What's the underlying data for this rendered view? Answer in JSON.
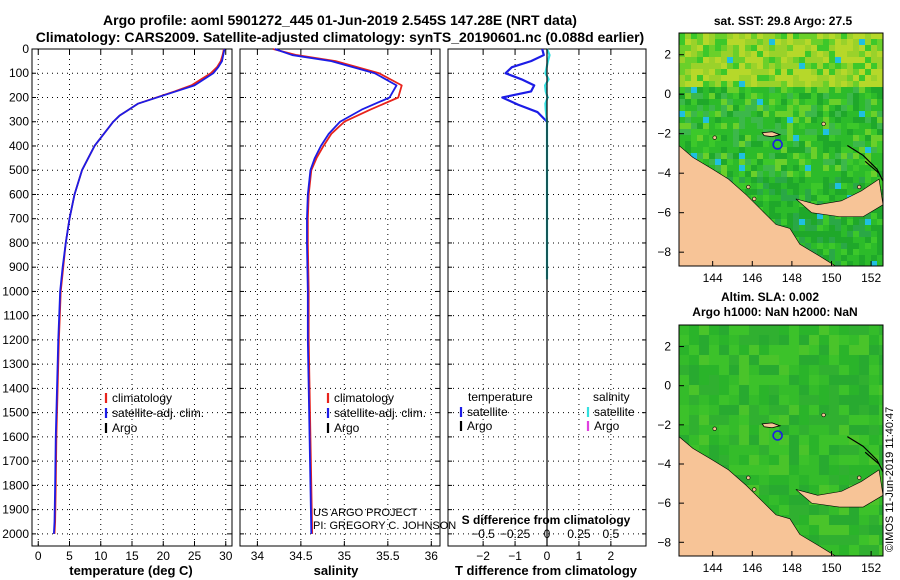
{
  "header": {
    "line1": "Argo profile: aoml 5901272_445 01-Jun-2019 2.545S 147.28E (NRT data)",
    "line2": "Climatology: CARS2009. Satellite-adjusted climatology: synTS_20190601.nc (0.088d earlier)"
  },
  "credit": {
    "project": "US ARGO PROJECT",
    "pi": "PI: GREGORY C. JOHNSON",
    "stamp": "©IMOS 11-Jun-2019 11:40:47"
  },
  "colors": {
    "climatology": "#e8231c",
    "satellite": "#1c1ce6",
    "argo": "#000000",
    "salinity_sat": "#33e0e0",
    "salinity_argo": "#e040e0",
    "land": "#f7c497",
    "ocean": "#28b828"
  },
  "chart_data": [
    {
      "id": "temperature",
      "type": "line",
      "xlabel": "temperature (deg C)",
      "ylabel": "pressure (dbar)",
      "xlim": [
        -1,
        31
      ],
      "ylim": [
        2050,
        0
      ],
      "xticks": [
        0,
        5,
        10,
        15,
        20,
        25,
        30
      ],
      "yticks": [
        0,
        100,
        200,
        300,
        400,
        500,
        600,
        700,
        800,
        900,
        1000,
        1100,
        1200,
        1300,
        1400,
        1500,
        1600,
        1700,
        1800,
        1900,
        2000
      ],
      "legend": [
        "climatology",
        "satellite-adj. clim.",
        "Argo"
      ],
      "series": [
        {
          "name": "climatology",
          "color": "#e8231c",
          "x": [
            29.7,
            29.5,
            29.2,
            28.6,
            27.6,
            24.5,
            21.8,
            16.0,
            13.0,
            12.0,
            10.5,
            9.0,
            8.0,
            7.0,
            5.8,
            5.0,
            4.4,
            4.0,
            3.6,
            3.3,
            3.1,
            2.9,
            2.8,
            2.7,
            2.6
          ],
          "y": [
            0,
            25,
            50,
            75,
            100,
            150,
            175,
            225,
            275,
            300,
            350,
            400,
            450,
            500,
            600,
            700,
            800,
            900,
            1000,
            1200,
            1400,
            1600,
            1800,
            1950,
            2000
          ]
        },
        {
          "name": "satellite-adj. clim.",
          "color": "#1c1ce6",
          "x": [
            29.8,
            29.6,
            29.4,
            28.8,
            28.0,
            25.0,
            22.0,
            16.0,
            13.0,
            12.0,
            10.5,
            9.0,
            8.0,
            7.0,
            5.8,
            5.0,
            4.4,
            3.9,
            3.5,
            3.2,
            3.0,
            2.8,
            2.7,
            2.6,
            2.5
          ],
          "y": [
            0,
            25,
            50,
            75,
            100,
            150,
            175,
            225,
            275,
            300,
            350,
            400,
            450,
            500,
            600,
            700,
            800,
            900,
            1000,
            1200,
            1400,
            1600,
            1800,
            1950,
            2000
          ]
        }
      ]
    },
    {
      "id": "salinity",
      "type": "line",
      "xlabel": "salinity",
      "xlim": [
        33.8,
        36.1
      ],
      "ylim": [
        2050,
        0
      ],
      "xticks": [
        34,
        34.5,
        35,
        35.5,
        36
      ],
      "legend": [
        "climatology",
        "satellite-adj. clim.",
        "Argo"
      ],
      "series": [
        {
          "name": "climatology",
          "color": "#e8231c",
          "x": [
            34.18,
            34.45,
            34.9,
            35.4,
            35.66,
            35.62,
            35.3,
            35.0,
            34.85,
            34.76,
            34.68,
            34.62,
            34.59,
            34.58,
            34.58,
            34.59,
            34.59,
            34.6,
            34.61,
            34.62,
            34.63
          ],
          "y": [
            0,
            25,
            50,
            100,
            150,
            200,
            250,
            300,
            350,
            400,
            450,
            500,
            600,
            700,
            800,
            1000,
            1200,
            1400,
            1600,
            1800,
            2000
          ]
        },
        {
          "name": "satellite-adj. clim.",
          "color": "#1c1ce6",
          "x": [
            34.2,
            34.4,
            34.85,
            35.35,
            35.6,
            35.52,
            35.2,
            34.95,
            34.82,
            34.73,
            34.66,
            34.61,
            34.58,
            34.57,
            34.57,
            34.58,
            34.58,
            34.59,
            34.6,
            34.61,
            34.62
          ],
          "y": [
            0,
            25,
            50,
            100,
            150,
            200,
            250,
            300,
            350,
            400,
            450,
            500,
            600,
            700,
            800,
            1000,
            1200,
            1400,
            1600,
            1800,
            2000
          ]
        }
      ]
    },
    {
      "id": "difference",
      "type": "line",
      "xlabel": "T difference from climatology",
      "xlabel_top": "S difference from climatology",
      "xlim": [
        -3.1,
        3.1
      ],
      "ylim": [
        2050,
        0
      ],
      "xticks": [
        -2,
        -1,
        0,
        1,
        2
      ],
      "xticks_top": [
        -0.5,
        -0.25,
        0,
        0.25,
        0.5
      ],
      "legend_left_title": "temperature",
      "legend_right_title": "salinity",
      "legend": [
        "satellite",
        "Argo",
        "satellite",
        "Argo"
      ],
      "series": [
        {
          "name": "temperature satellite",
          "color": "#1c1ce6",
          "x": [
            -0.15,
            -0.1,
            -0.5,
            -1.1,
            -1.3,
            -0.8,
            -0.4,
            -0.5,
            -1.4,
            -0.9,
            -0.3,
            0.0
          ],
          "y": [
            0,
            25,
            50,
            75,
            100,
            125,
            150,
            175,
            200,
            230,
            260,
            300
          ]
        },
        {
          "name": "salinity satellite",
          "color": "#33e0e0",
          "x": [
            0.0,
            0.08,
            0.03,
            -0.05,
            0.05,
            -0.06,
            -0.04,
            0.02,
            -0.05,
            -0.04,
            0.0,
            0.0,
            0.0,
            0.0,
            0.0,
            0.0,
            0.0
          ],
          "y": [
            0,
            25,
            50,
            100,
            125,
            150,
            175,
            200,
            225,
            250,
            300,
            400,
            500,
            600,
            700,
            800,
            950
          ]
        }
      ]
    },
    {
      "id": "sst-map",
      "type": "heatmap",
      "title": "sat. SST: 29.8 Argo: 27.5",
      "xlim": [
        142.3,
        152.6
      ],
      "ylim": [
        -8.7,
        3.1
      ],
      "xticks": [
        144,
        146,
        148,
        150,
        152
      ],
      "yticks": [
        2,
        0,
        -2,
        -4,
        -6,
        -8
      ]
    },
    {
      "id": "sla-map",
      "type": "heatmap",
      "title_line1": "Altim. SLA: 0.002",
      "title_line2": "Argo h1000: NaN h2000: NaN",
      "xlim": [
        142.3,
        152.6
      ],
      "ylim": [
        -8.7,
        3.1
      ],
      "xticks": [
        144,
        146,
        148,
        150,
        152
      ],
      "yticks": [
        2,
        0,
        -2,
        -4,
        -6,
        -8
      ]
    }
  ]
}
